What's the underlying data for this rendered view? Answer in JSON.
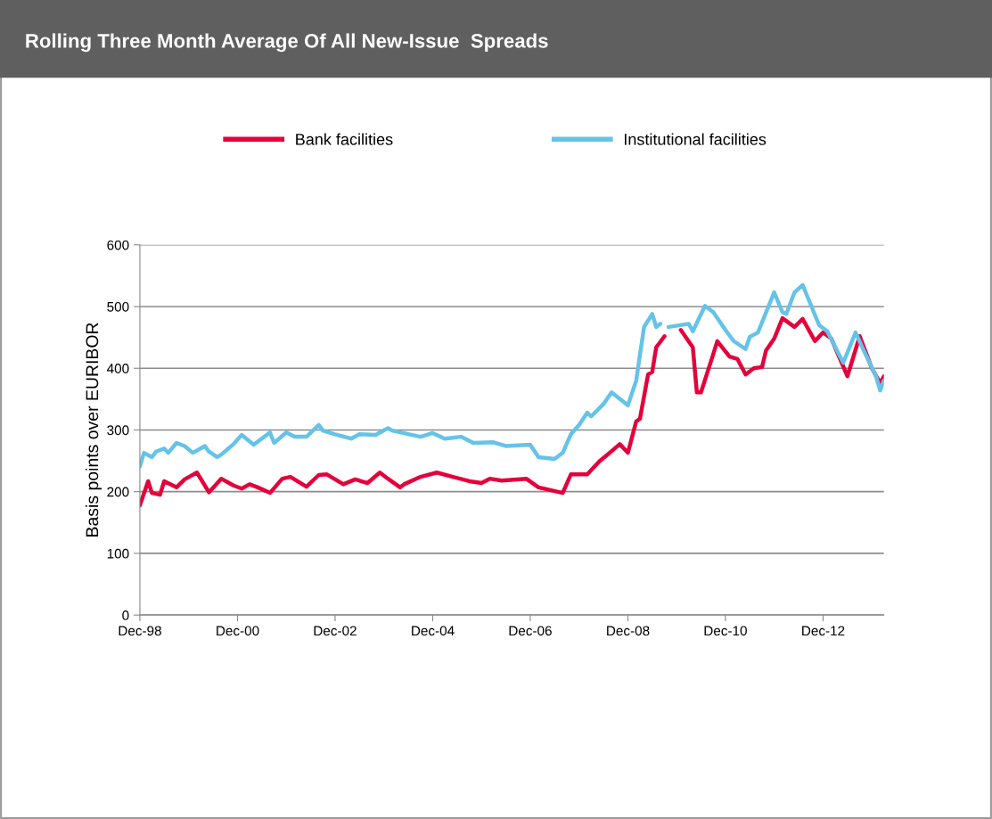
{
  "chart_data": {
    "type": "line",
    "title": "Rolling Three Month Average Of All New-Issue  Spreads",
    "ylabel": "Basis points over EURIBOR",
    "xlim": [
      "1998-12",
      "2014-03"
    ],
    "ylim": [
      0,
      600
    ],
    "yticks": [
      0,
      100,
      200,
      300,
      400,
      500,
      600
    ],
    "xticks": [
      {
        "value": "1998-12",
        "label": "Dec-98"
      },
      {
        "value": "2000-12",
        "label": "Dec-00"
      },
      {
        "value": "2002-12",
        "label": "Dec-02"
      },
      {
        "value": "2004-12",
        "label": "Dec-04"
      },
      {
        "value": "2006-12",
        "label": "Dec-06"
      },
      {
        "value": "2008-12",
        "label": "Dec-08"
      },
      {
        "value": "2010-12",
        "label": "Dec-10"
      },
      {
        "value": "2012-12",
        "label": "Dec-12"
      }
    ],
    "grid": "y",
    "legend": "top",
    "line_style": "solid",
    "marker": "none",
    "series": [
      {
        "name": "Bank facilities",
        "color": "#e4003b",
        "x": [
          "1998-12",
          "1999-02",
          "1999-03",
          "1999-05",
          "1999-06",
          "1999-09",
          "1999-11",
          "2000-02",
          "2000-05",
          "2000-08",
          "2000-11",
          "2001-01",
          "2001-03",
          "2001-05",
          "2001-08",
          "2001-11",
          "2002-01",
          "2002-05",
          "2002-08",
          "2002-10",
          "2003-02",
          "2003-05",
          "2003-08",
          "2003-11",
          "2004-01",
          "2004-04",
          "2004-05",
          "2004-09",
          "2005-01",
          "2005-05",
          "2005-09",
          "2005-12",
          "2006-02",
          "2006-05",
          "2006-11",
          "2007-02",
          "2007-08",
          "2007-10",
          "2008-02",
          "2008-05",
          "2008-07",
          "2008-10",
          "2008-12",
          "2009-02",
          "2009-03",
          "2009-05",
          "2009-06",
          "2009-07",
          "2009-09",
          "2009-10",
          "2010-01",
          "2010-04",
          "2010-05",
          "2010-06",
          "2010-09",
          "2010-10",
          "2011-01",
          "2011-03",
          "2011-05",
          "2011-07",
          "2011-09",
          "2011-10",
          "2011-12",
          "2012-02",
          "2012-05",
          "2012-07",
          "2012-10",
          "2012-12",
          "2013-02",
          "2013-06",
          "2013-09",
          "2013-12",
          "2014-02",
          "2014-03"
        ],
        "values": [
          178,
          217,
          198,
          195,
          217,
          207,
          220,
          231,
          199,
          221,
          210,
          205,
          212,
          207,
          198,
          221,
          224,
          208,
          227,
          228,
          212,
          220,
          214,
          231,
          221,
          207,
          212,
          224,
          231,
          224,
          217,
          214,
          221,
          218,
          221,
          207,
          198,
          228,
          228,
          249,
          260,
          277,
          263,
          314,
          318,
          390,
          394,
          434,
          452,
          null,
          462,
          434,
          361,
          361,
          423,
          444,
          419,
          415,
          390,
          400,
          402,
          429,
          448,
          481,
          467,
          480,
          444,
          458,
          448,
          387,
          452,
          400,
          376,
          387
        ]
      },
      {
        "name": "Institutional facilities",
        "color": "#66c3e8",
        "x": [
          "1998-12",
          "1999-01",
          "1999-03",
          "1999-04",
          "1999-06",
          "1999-07",
          "1999-09",
          "1999-11",
          "2000-01",
          "2000-04",
          "2000-05",
          "2000-07",
          "2000-08",
          "2000-11",
          "2001-01",
          "2001-04",
          "2001-08",
          "2001-09",
          "2001-12",
          "2002-02",
          "2002-05",
          "2002-08",
          "2002-09",
          "2002-12",
          "2003-04",
          "2003-06",
          "2003-10",
          "2004-01",
          "2004-02",
          "2004-09",
          "2004-12",
          "2005-03",
          "2005-07",
          "2005-10",
          "2006-03",
          "2006-06",
          "2006-12",
          "2007-02",
          "2007-06",
          "2007-08",
          "2007-10",
          "2007-12",
          "2008-02",
          "2008-03",
          "2008-06",
          "2008-08",
          "2008-12",
          "2009-02",
          "2009-04",
          "2009-06",
          "2009-07",
          "2009-08",
          "2009-09",
          "2009-10",
          "2010-03",
          "2010-04",
          "2010-07",
          "2010-09",
          "2010-12",
          "2011-02",
          "2011-05",
          "2011-06",
          "2011-08",
          "2011-12",
          "2012-02",
          "2012-03",
          "2012-05",
          "2012-07",
          "2012-11",
          "2013-01",
          "2013-05",
          "2013-08",
          "2013-10",
          "2014-01",
          "2014-02",
          "2014-03"
        ],
        "values": [
          241,
          263,
          256,
          265,
          270,
          263,
          279,
          274,
          263,
          274,
          265,
          256,
          260,
          277,
          292,
          276,
          296,
          279,
          296,
          289,
          289,
          308,
          299,
          293,
          286,
          293,
          292,
          303,
          299,
          289,
          295,
          286,
          289,
          279,
          280,
          274,
          276,
          256,
          253,
          263,
          293,
          308,
          328,
          322,
          342,
          361,
          340,
          380,
          467,
          488,
          467,
          472,
          null,
          467,
          472,
          460,
          501,
          491,
          462,
          444,
          431,
          451,
          458,
          523,
          491,
          488,
          523,
          535,
          470,
          460,
          409,
          458,
          429,
          387,
          364,
          380
        ]
      }
    ]
  }
}
